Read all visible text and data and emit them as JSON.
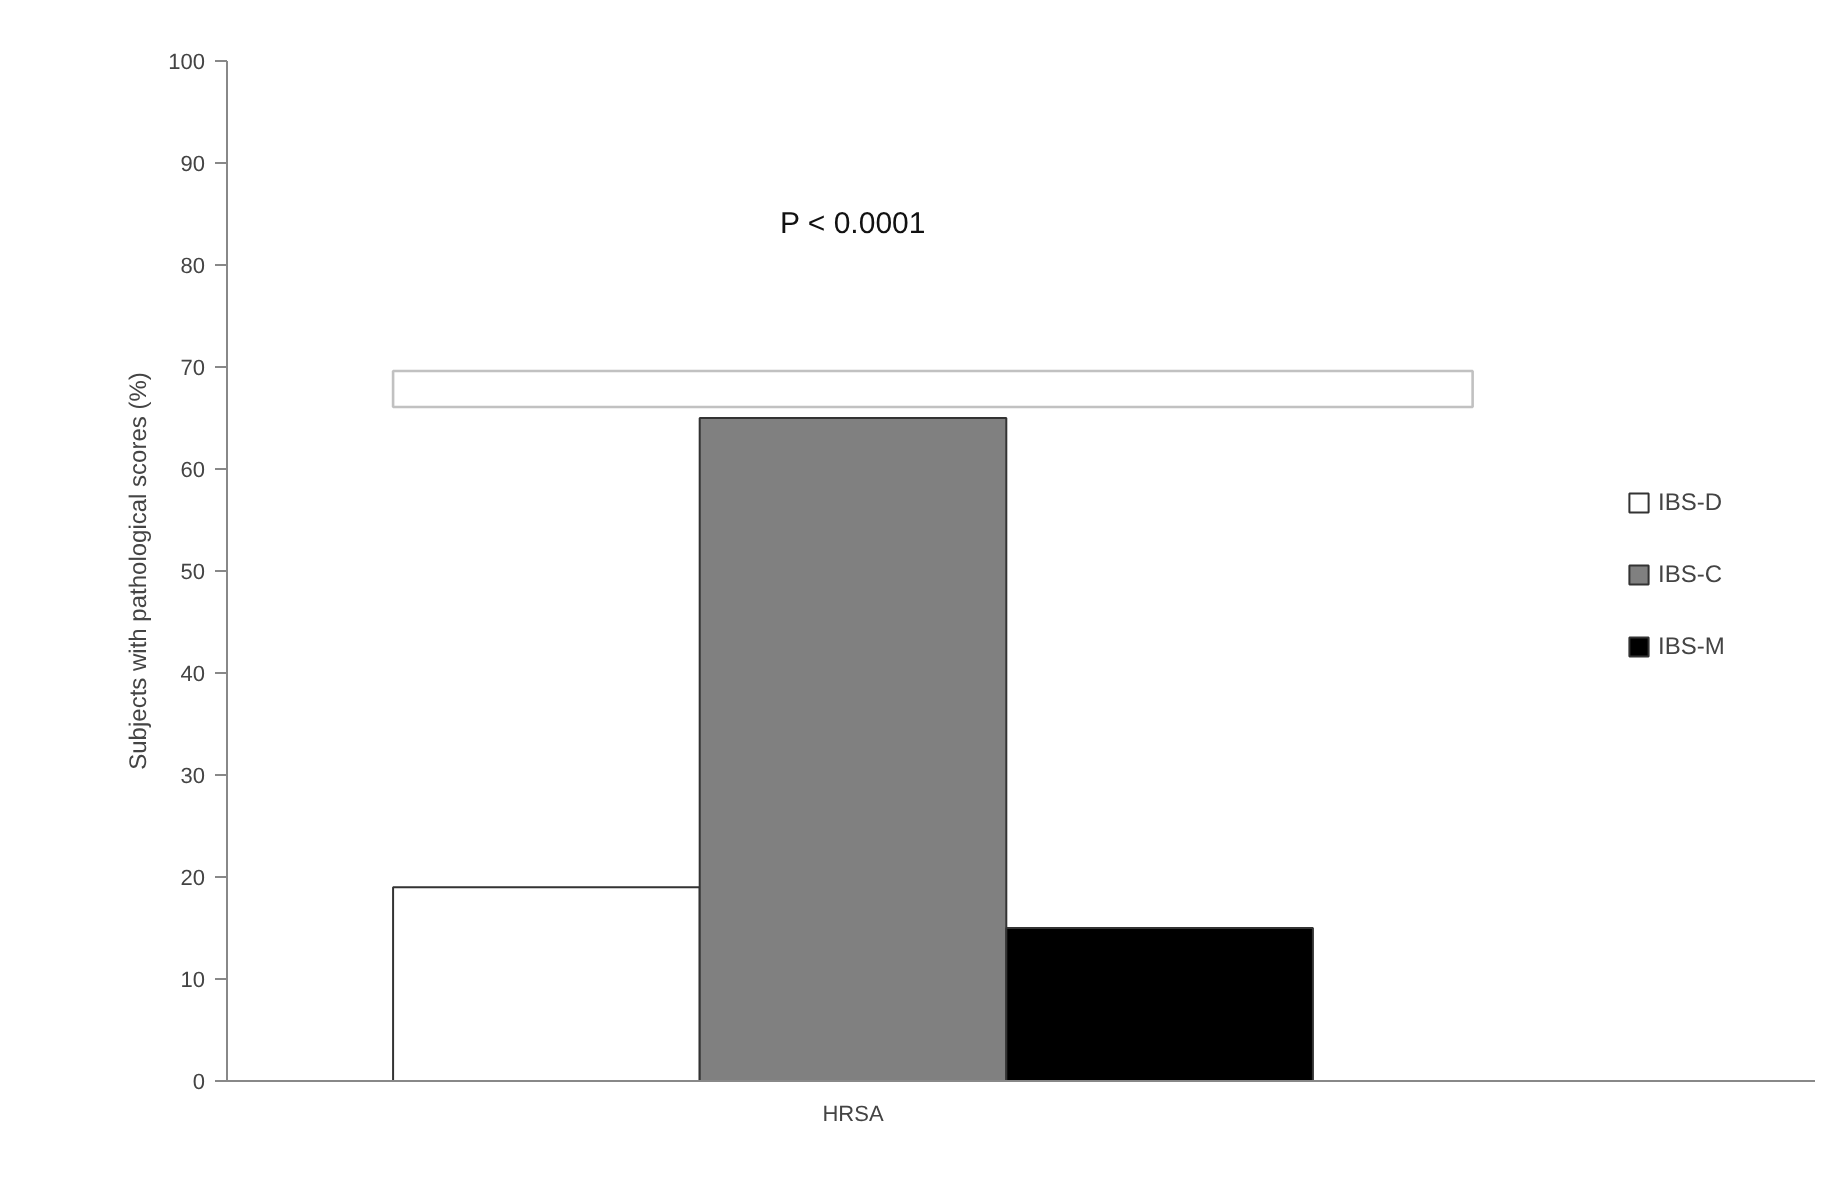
{
  "chart_data": {
    "type": "bar",
    "categories": [
      "HRSA"
    ],
    "ylabel": "Subjects with pathological scores (%)",
    "series": [
      {
        "name": "IBS-D",
        "color": "#ffffff",
        "values": [
          19
        ]
      },
      {
        "name": "IBS-C",
        "color": "#808080",
        "values": [
          65
        ]
      },
      {
        "name": "IBS-M",
        "color": "#000000",
        "values": [
          15
        ]
      }
    ],
    "annotations": [
      "P < 0.0001"
    ],
    "ylim": [
      0,
      100
    ],
    "yticks": [
      0,
      10,
      20,
      30,
      40,
      50,
      60,
      70,
      80,
      90,
      100
    ],
    "grid": false,
    "legend": "right"
  }
}
